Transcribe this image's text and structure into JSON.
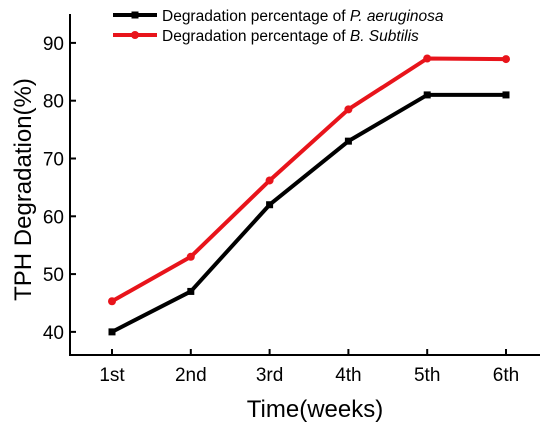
{
  "chart_data": {
    "type": "line",
    "xlabel": "Time(weeks)",
    "ylabel": "TPH Degradation(%)",
    "categories": [
      "1st",
      "2nd",
      "3rd",
      "4th",
      "5th",
      "6th"
    ],
    "ylim": [
      36,
      95
    ],
    "yticks": [
      40,
      50,
      60,
      70,
      80,
      90
    ],
    "grid": false,
    "legend_position": "top",
    "series": [
      {
        "name_prefix": "Degradation percentage of ",
        "name_italic": "P. aeruginosa",
        "color": "#000000",
        "marker": "square",
        "values": [
          40.0,
          47.0,
          62.0,
          73.0,
          81.0,
          81.0
        ]
      },
      {
        "name_prefix": "Degradation percentage of ",
        "name_italic": "B. Subtilis",
        "color": "#e8141b",
        "marker": "circle",
        "values": [
          45.3,
          53.0,
          66.2,
          78.5,
          87.3,
          87.2
        ]
      }
    ]
  }
}
